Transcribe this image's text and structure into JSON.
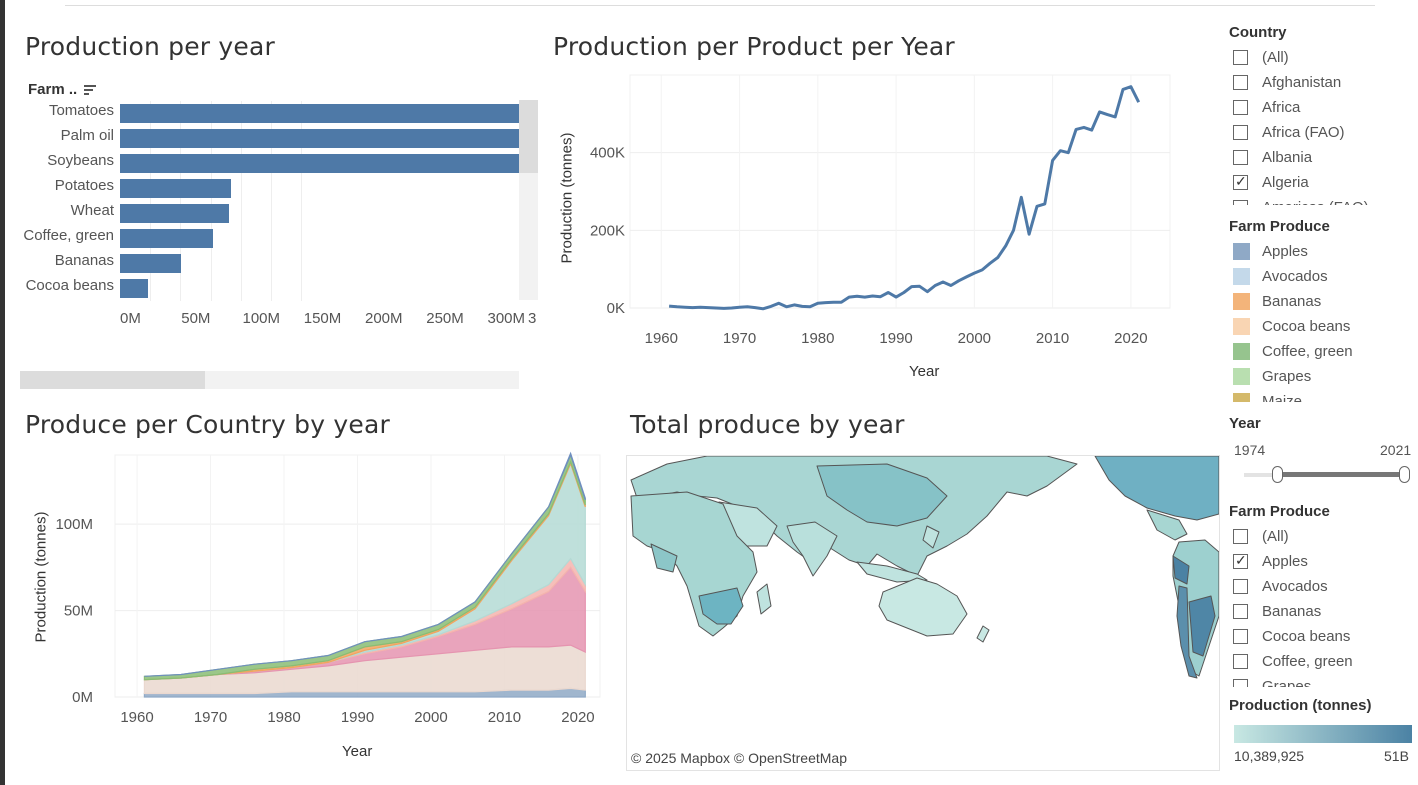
{
  "panels": {
    "bar_title": "Production per year",
    "line_title": "Production per Product per Year",
    "area_title": "Produce per Country by year",
    "map_title": "Total produce by year"
  },
  "bar_chart": {
    "field_label": "Farm ..",
    "sort_icon": "sort-descending-icon",
    "axis_clip_label": "3"
  },
  "line_chart_axes": {
    "ylabel": "Production (tonnes)",
    "xlabel": "Year"
  },
  "area_chart_axes": {
    "ylabel": "Production (tonnes)",
    "xlabel": "Year"
  },
  "map": {
    "attribution": "© 2025 Mapbox  © OpenStreetMap"
  },
  "chart_data": [
    {
      "type": "bar",
      "title": "Production per year",
      "categories": [
        "Tomatoes",
        "Palm oil",
        "Soybeans",
        "Potatoes",
        "Wheat",
        "Coffee, green",
        "Bananas",
        "Cocoa beans"
      ],
      "values": [
        330,
        330,
        330,
        92,
        90,
        77,
        50,
        23
      ],
      "value_unit": "M",
      "ticks": [
        "0M",
        "50M",
        "100M",
        "150M",
        "200M",
        "250M",
        "300M"
      ],
      "xlim": [
        0,
        340
      ],
      "color": "#4e79a7"
    },
    {
      "type": "line",
      "title": "Production per Product per Year",
      "xlabel": "Year",
      "ylabel": "Production (tonnes)",
      "xticks": [
        "1960",
        "1970",
        "1980",
        "1990",
        "2000",
        "2010",
        "2020"
      ],
      "yticks": [
        "0K",
        "200K",
        "400K"
      ],
      "xlim": [
        1956,
        2025
      ],
      "ylim": [
        0,
        600000
      ],
      "color": "#4e79a7",
      "x": [
        1961,
        1962,
        1963,
        1964,
        1965,
        1966,
        1967,
        1968,
        1969,
        1970,
        1971,
        1972,
        1973,
        1974,
        1975,
        1976,
        1977,
        1978,
        1979,
        1980,
        1981,
        1982,
        1983,
        1984,
        1985,
        1986,
        1987,
        1988,
        1989,
        1990,
        1991,
        1992,
        1993,
        1994,
        1995,
        1996,
        1997,
        1998,
        1999,
        2000,
        2001,
        2002,
        2003,
        2004,
        2005,
        2006,
        2007,
        2008,
        2009,
        2010,
        2011,
        2012,
        2013,
        2014,
        2015,
        2016,
        2017,
        2018,
        2019,
        2020,
        2021
      ],
      "y": [
        5000,
        3000,
        2000,
        1000,
        2000,
        1000,
        0,
        -1000,
        0,
        2000,
        3000,
        1000,
        -2000,
        4000,
        12000,
        3000,
        8000,
        4000,
        3000,
        12000,
        14000,
        15000,
        15000,
        28000,
        30000,
        28000,
        31000,
        29000,
        40000,
        28000,
        40000,
        55000,
        56000,
        42000,
        58000,
        67000,
        58000,
        70000,
        80000,
        90000,
        98000,
        115000,
        130000,
        160000,
        200000,
        285000,
        190000,
        262000,
        268000,
        380000,
        405000,
        400000,
        460000,
        465000,
        458000,
        505000,
        498000,
        492000,
        563000,
        570000,
        530000
      ]
    },
    {
      "type": "area",
      "title": "Produce per Country by year",
      "xlabel": "Year",
      "ylabel": "Production (tonnes)",
      "xticks": [
        "1960",
        "1970",
        "1980",
        "1990",
        "2000",
        "2010",
        "2020"
      ],
      "yticks": [
        "0M",
        "50M",
        "100M"
      ],
      "xlim": [
        1957,
        2023
      ],
      "ylim": [
        0,
        140
      ],
      "value_unit": "M",
      "x": [
        1961,
        1966,
        1971,
        1976,
        1981,
        1986,
        1991,
        1996,
        2001,
        2006,
        2011,
        2016,
        2019,
        2021
      ],
      "series": [
        {
          "color": "#8fa9c6",
          "values": [
            2,
            2,
            2,
            2,
            3,
            3,
            3,
            3,
            3,
            3,
            4,
            4,
            5,
            4
          ]
        },
        {
          "color": "#ead8cf",
          "values": [
            8,
            9,
            11,
            12,
            13,
            15,
            18,
            20,
            22,
            24,
            25,
            25,
            25,
            22
          ]
        },
        {
          "color": "#e594b0",
          "values": [
            0,
            0,
            0,
            1,
            1,
            2,
            4,
            6,
            10,
            15,
            22,
            32,
            45,
            35
          ]
        },
        {
          "color": "#f4b4ae",
          "values": [
            0,
            0,
            0,
            0,
            0,
            0,
            1,
            1,
            1,
            2,
            3,
            4,
            5,
            4
          ]
        },
        {
          "color": "#b4dad5",
          "values": [
            0,
            0,
            0,
            0,
            0,
            0,
            1,
            1,
            2,
            7,
            25,
            40,
            55,
            45
          ]
        },
        {
          "color": "#f3a45f",
          "values": [
            0,
            0,
            0,
            1,
            1,
            1,
            2,
            1,
            1,
            1,
            1,
            1,
            1,
            1
          ]
        },
        {
          "color": "#89bd74",
          "values": [
            2,
            2,
            3,
            3,
            3,
            3,
            3,
            3,
            3,
            3,
            3,
            4,
            4,
            3
          ]
        },
        {
          "color": "#6f8fbf",
          "values": [
            0,
            0,
            0,
            0,
            0,
            0,
            0,
            0,
            0,
            0,
            0,
            0,
            1,
            1
          ]
        }
      ]
    },
    {
      "type": "heatmap",
      "title": "Total produce by year",
      "legend_title": "Production (tonnes)",
      "min_label": "10,389,925",
      "max_label": "51B",
      "color_min": "#c8e8e3",
      "color_max": "#4b82a4"
    }
  ],
  "filters": {
    "country": {
      "title": "Country",
      "items": [
        {
          "label": "(All)",
          "checked": false
        },
        {
          "label": "Afghanistan",
          "checked": false
        },
        {
          "label": "Africa",
          "checked": false
        },
        {
          "label": "Africa (FAO)",
          "checked": false
        },
        {
          "label": "Albania",
          "checked": false
        },
        {
          "label": "Algeria",
          "checked": true
        },
        {
          "label": "Americas (FAO)",
          "checked": false
        }
      ]
    },
    "produce_legend": {
      "title": "Farm Produce",
      "items": [
        {
          "label": "Apples",
          "color": "#8fa9c6"
        },
        {
          "label": "Avocados",
          "color": "#c4d9ea"
        },
        {
          "label": "Bananas",
          "color": "#f3b47a"
        },
        {
          "label": "Cocoa beans",
          "color": "#f9d5b3"
        },
        {
          "label": "Coffee, green",
          "color": "#96c48e"
        },
        {
          "label": "Grapes",
          "color": "#b9dfb0"
        },
        {
          "label": "Maize",
          "color": "#d4b96a"
        }
      ]
    },
    "year": {
      "title": "Year",
      "min_label": "1974",
      "max_label": "2021",
      "low_fraction": 0.18,
      "high_fraction": 1.0
    },
    "produce_filter": {
      "title": "Farm Produce",
      "items": [
        {
          "label": "(All)",
          "checked": false
        },
        {
          "label": "Apples",
          "checked": true
        },
        {
          "label": "Avocados",
          "checked": false
        },
        {
          "label": "Bananas",
          "checked": false
        },
        {
          "label": "Cocoa beans",
          "checked": false
        },
        {
          "label": "Coffee, green",
          "checked": false
        },
        {
          "label": "Grapes",
          "checked": false
        }
      ]
    },
    "color_legend": {
      "title": "Production (tonnes)",
      "min_label": "10,389,925",
      "max_label": "51B"
    }
  }
}
